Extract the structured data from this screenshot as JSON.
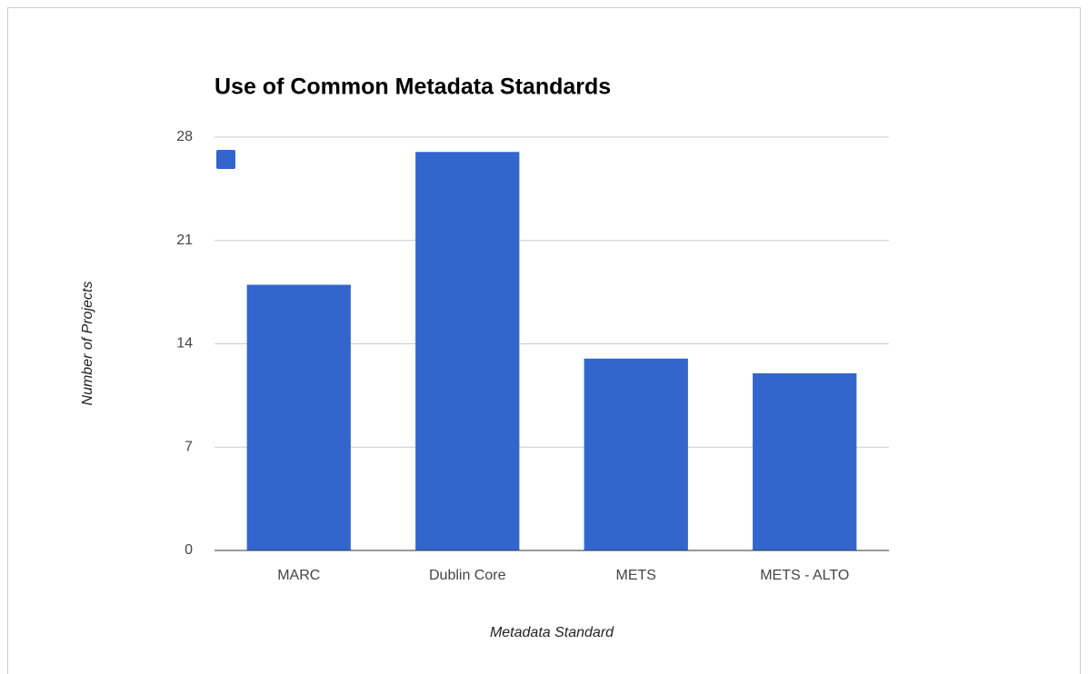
{
  "chart_data": {
    "type": "bar",
    "title": "Use of Common Metadata Standards",
    "categories": [
      "MARC",
      "Dublin Core",
      "METS",
      "METS - ALTO"
    ],
    "values": [
      18,
      27,
      13,
      12
    ],
    "color": "#3366cc",
    "xlabel": "Metadata Standard",
    "ylabel": "Number of Projects",
    "ylim": [
      0,
      28
    ],
    "yticks": [
      0,
      7,
      14,
      21,
      28
    ],
    "grid": true,
    "legend": "top-left"
  }
}
